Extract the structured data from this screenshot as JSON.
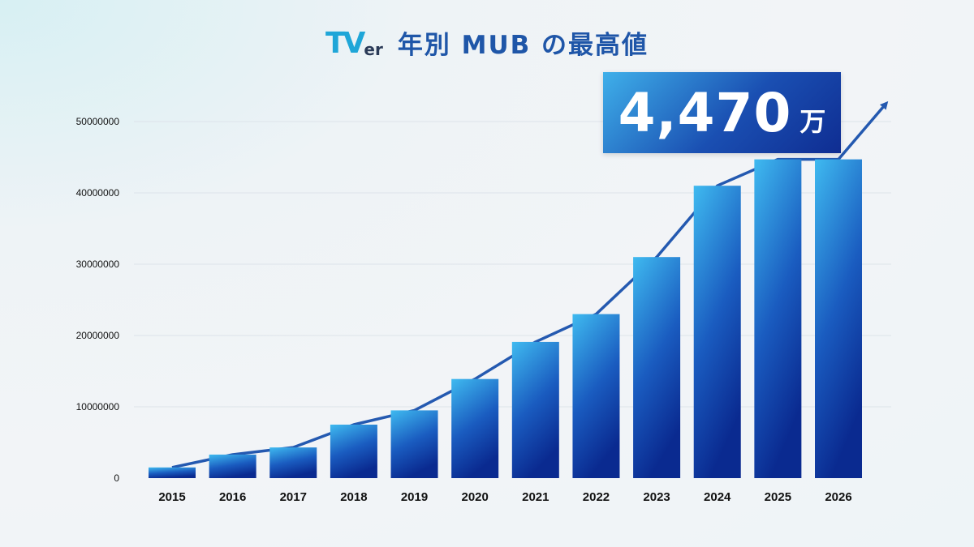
{
  "header": {
    "logo": {
      "main": "TV",
      "suffix": "er"
    },
    "title": "年別 MUB の最高値"
  },
  "callout": {
    "value": "4,470",
    "unit": "万"
  },
  "colors": {
    "bar_top": "#3fbaf0",
    "bar_bottom": "#0a2a90",
    "trend": "#2459b0",
    "title": "#1f56a8",
    "grid": "#dde3ea"
  },
  "chart_data": {
    "type": "bar",
    "title": "年別 MUB の最高値",
    "xlabel": "",
    "ylabel": "",
    "categories": [
      "2015",
      "2016",
      "2017",
      "2018",
      "2019",
      "2020",
      "2021",
      "2022",
      "2023",
      "2024",
      "2025",
      "2026"
    ],
    "values": [
      1500000,
      3300000,
      4300000,
      7500000,
      9500000,
      13900000,
      19100000,
      23000000,
      31000000,
      41000000,
      44700000,
      44700000
    ],
    "ylim": [
      0,
      50000000
    ],
    "yticks": [
      0,
      10000000,
      20000000,
      30000000,
      40000000,
      50000000
    ],
    "ytick_labels": [
      "0",
      "10000000",
      "20000000",
      "30000000",
      "40000000",
      "50000000"
    ],
    "grid": true,
    "legend": "none",
    "trend_arrow": true
  }
}
